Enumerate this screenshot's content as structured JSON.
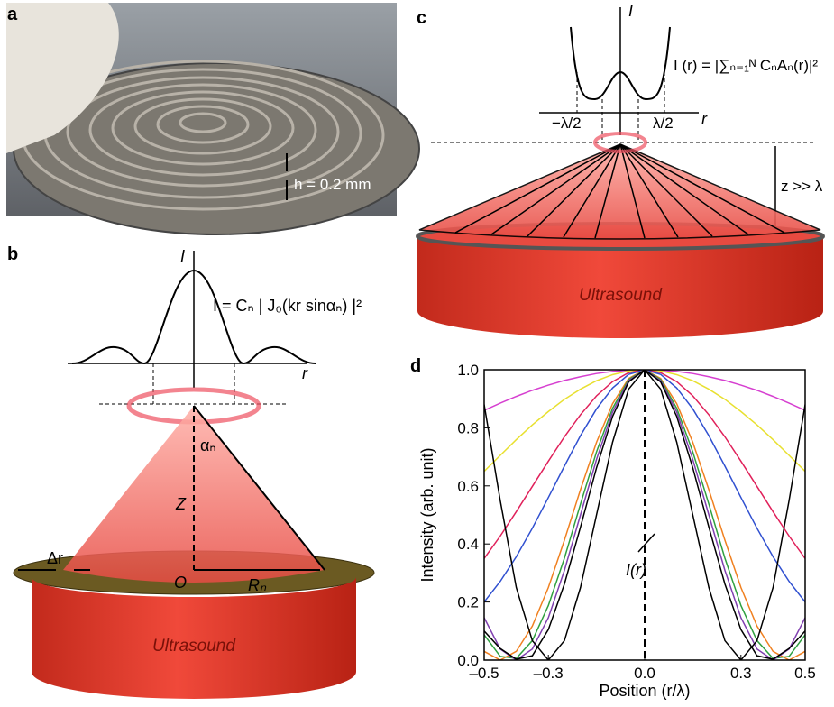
{
  "panels": {
    "a": {
      "label": "a",
      "scale_note": "h = 0.2 mm"
    },
    "b": {
      "label": "b",
      "axis_y": "I",
      "axis_x": "r",
      "formula": "I = Cₙ | J₀(kr sinαₙ) |²",
      "angle": "αₙ",
      "height": "Z",
      "origin": "O",
      "radius": "Rₙ",
      "width": "Δr",
      "source": "Ultrasound"
    },
    "c": {
      "label": "c",
      "axis_y": "I",
      "axis_x": "r",
      "formula": "I (r) = |∑ₙ₌₁ᴺ CₙAₙ(r)|²",
      "left_mark": "−λ/2",
      "right_mark": "λ/2",
      "distance": "z >> λ",
      "source": "Ultrasound"
    },
    "d": {
      "label": "d"
    }
  },
  "chart_data": {
    "type": "line",
    "xlabel": "Position (r/λ)",
    "ylabel": "Intensity (arb. unit)",
    "annotation": "I(r)",
    "x": [
      -0.5,
      -0.45,
      -0.4,
      -0.35,
      -0.3,
      -0.25,
      -0.2,
      -0.15,
      -0.1,
      -0.05,
      0,
      0.05,
      0.1,
      0.15,
      0.2,
      0.25,
      0.3,
      0.35,
      0.4,
      0.45,
      0.5
    ],
    "xlim": [
      -0.5,
      0.5
    ],
    "ylim": [
      0,
      1
    ],
    "xticks": [
      {
        "value": -0.5,
        "label": "–0.5"
      },
      {
        "value": -0.3,
        "label": "–0.3"
      },
      {
        "value": 0,
        "label": "0.0"
      },
      0.3,
      0.5
    ],
    "yticks": [
      {
        "value": 0,
        "label": "0.0"
      },
      0.2,
      0.4,
      0.6,
      0.8,
      {
        "value": 1,
        "label": "1.0"
      }
    ],
    "series": [
      {
        "color": "#d63fd0",
        "values": [
          0.86,
          0.885,
          0.908,
          0.929,
          0.947,
          0.963,
          0.976,
          0.987,
          0.994,
          0.998,
          1,
          0.998,
          0.994,
          0.987,
          0.976,
          0.963,
          0.947,
          0.929,
          0.908,
          0.885,
          0.86
        ]
      },
      {
        "color": "#e8e030",
        "values": [
          0.65,
          0.705,
          0.759,
          0.81,
          0.856,
          0.898,
          0.933,
          0.962,
          0.983,
          0.996,
          1,
          0.996,
          0.983,
          0.962,
          0.933,
          0.898,
          0.856,
          0.81,
          0.759,
          0.705,
          0.65
        ]
      },
      {
        "color": "#e0205a",
        "values": [
          0.35,
          0.427,
          0.511,
          0.598,
          0.685,
          0.769,
          0.845,
          0.91,
          0.959,
          0.99,
          1,
          0.99,
          0.959,
          0.91,
          0.845,
          0.769,
          0.685,
          0.598,
          0.511,
          0.427,
          0.35
        ]
      },
      {
        "color": "#3050d0",
        "values": [
          0.2,
          0.271,
          0.356,
          0.454,
          0.56,
          0.668,
          0.773,
          0.865,
          0.937,
          0.984,
          1,
          0.984,
          0.937,
          0.865,
          0.773,
          0.668,
          0.56,
          0.454,
          0.356,
          0.271,
          0.2
        ]
      },
      {
        "color": "#f08020",
        "values": [
          0.03,
          0,
          0.03,
          0.117,
          0.25,
          0.413,
          0.587,
          0.75,
          0.883,
          0.97,
          1,
          0.97,
          0.883,
          0.75,
          0.587,
          0.413,
          0.25,
          0.117,
          0.03,
          0,
          0.03
        ]
      },
      {
        "color": "#30a040",
        "values": [
          0.087,
          0.013,
          0.006,
          0.067,
          0.188,
          0.351,
          0.537,
          0.717,
          0.867,
          0.966,
          1,
          0.966,
          0.867,
          0.717,
          0.537,
          0.351,
          0.188,
          0.067,
          0.006,
          0.013,
          0.087
        ]
      },
      {
        "color": "#8040b0",
        "values": [
          0.146,
          0.038,
          0,
          0.038,
          0.146,
          0.309,
          0.5,
          0.691,
          0.854,
          0.962,
          1,
          0.962,
          0.854,
          0.691,
          0.5,
          0.309,
          0.146,
          0.038,
          0,
          0.038,
          0.146
        ]
      },
      {
        "color": "#000000",
        "values": [
          0.1,
          0.04,
          0.003,
          0.015,
          0.105,
          0.262,
          0.458,
          0.662,
          0.839,
          0.958,
          1,
          0.958,
          0.839,
          0.662,
          0.458,
          0.262,
          0.105,
          0.015,
          0.003,
          0.04,
          0.1
        ]
      },
      {
        "color": "#000000",
        "values": [
          0.88,
          0.55,
          0.25,
          0.067,
          0,
          0.067,
          0.25,
          0.5,
          0.75,
          0.933,
          1,
          0.933,
          0.75,
          0.5,
          0.25,
          0.067,
          0,
          0.067,
          0.25,
          0.55,
          0.88
        ]
      }
    ]
  }
}
